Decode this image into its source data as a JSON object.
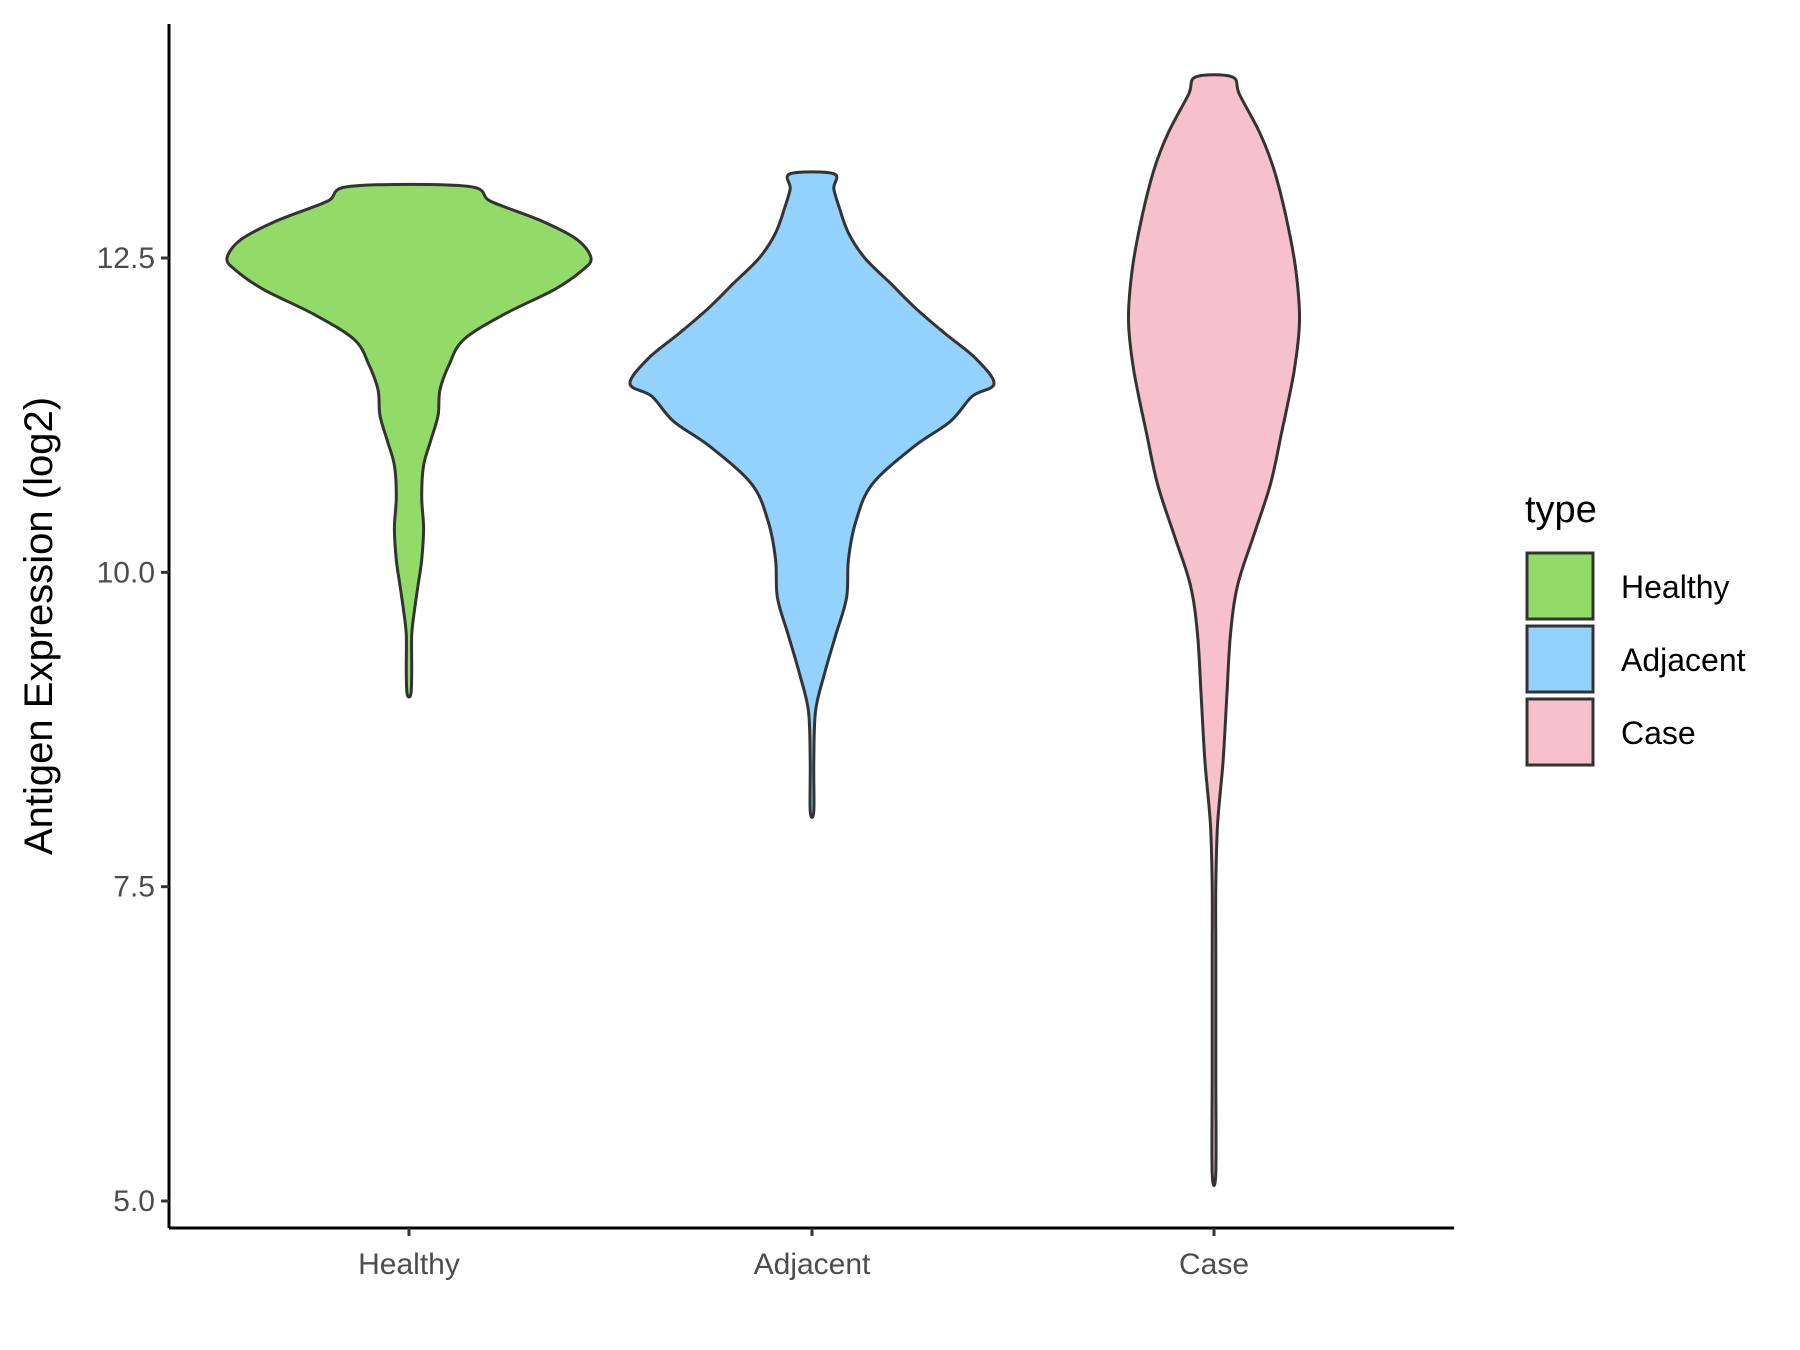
{
  "colors": {
    "healthy": "#93DB69",
    "adjacent": "#93D2FD",
    "case": "#F6C1CC",
    "outline": "#333333",
    "axis": "#000000",
    "tick_text": "#4d4d4d"
  },
  "chart_data": {
    "type": "violin",
    "title": "",
    "xlabel": "",
    "ylabel": "Antigen Expression (log2)",
    "ylim": [
      4.8,
      14.3
    ],
    "y_ticks": [
      5.0,
      7.5,
      10.0,
      12.5
    ],
    "y_tick_labels": [
      "5.0",
      "7.5",
      "10.0",
      "12.5"
    ],
    "categories": [
      "Healthy",
      "Adjacent",
      "Case"
    ],
    "grid": false,
    "legend": {
      "title": "type",
      "placement": "right",
      "entries": [
        "Healthy",
        "Adjacent",
        "Case"
      ]
    },
    "series": [
      {
        "name": "Healthy",
        "color": "#93DB69",
        "y_min": 9.03,
        "y_max": 13.07,
        "density": [
          [
            9.03,
            0.01
          ],
          [
            9.2,
            0.015
          ],
          [
            9.5,
            0.015
          ],
          [
            9.7,
            0.03
          ],
          [
            9.9,
            0.05
          ],
          [
            10.1,
            0.07
          ],
          [
            10.35,
            0.08
          ],
          [
            10.6,
            0.07
          ],
          [
            10.85,
            0.08
          ],
          [
            11.05,
            0.12
          ],
          [
            11.25,
            0.16
          ],
          [
            11.45,
            0.17
          ],
          [
            11.65,
            0.22
          ],
          [
            11.85,
            0.3
          ],
          [
            12.05,
            0.52
          ],
          [
            12.25,
            0.8
          ],
          [
            12.4,
            0.95
          ],
          [
            12.5,
            1.0
          ],
          [
            12.65,
            0.92
          ],
          [
            12.8,
            0.72
          ],
          [
            12.95,
            0.45
          ],
          [
            13.07,
            0.32
          ]
        ]
      },
      {
        "name": "Adjacent",
        "color": "#93D2FD",
        "y_min": 8.1,
        "y_max": 13.17,
        "density": [
          [
            8.1,
            0.01
          ],
          [
            8.5,
            0.01
          ],
          [
            8.9,
            0.02
          ],
          [
            9.2,
            0.07
          ],
          [
            9.5,
            0.13
          ],
          [
            9.8,
            0.19
          ],
          [
            10.1,
            0.2
          ],
          [
            10.4,
            0.24
          ],
          [
            10.7,
            0.33
          ],
          [
            11.0,
            0.56
          ],
          [
            11.2,
            0.76
          ],
          [
            11.4,
            0.88
          ],
          [
            11.5,
            1.0
          ],
          [
            11.7,
            0.9
          ],
          [
            11.9,
            0.73
          ],
          [
            12.1,
            0.57
          ],
          [
            12.3,
            0.43
          ],
          [
            12.5,
            0.29
          ],
          [
            12.7,
            0.2
          ],
          [
            12.9,
            0.15
          ],
          [
            13.05,
            0.12
          ],
          [
            13.17,
            0.12
          ]
        ]
      },
      {
        "name": "Case",
        "color": "#F6C1CC",
        "y_min": 5.22,
        "y_max": 13.94,
        "density": [
          [
            5.22,
            0.01
          ],
          [
            6.0,
            0.01
          ],
          [
            6.5,
            0.01
          ],
          [
            7.0,
            0.01
          ],
          [
            7.5,
            0.01
          ],
          [
            8.0,
            0.02
          ],
          [
            8.5,
            0.05
          ],
          [
            9.0,
            0.07
          ],
          [
            9.5,
            0.09
          ],
          [
            9.9,
            0.13
          ],
          [
            10.3,
            0.22
          ],
          [
            10.7,
            0.31
          ],
          [
            11.1,
            0.37
          ],
          [
            11.6,
            0.44
          ],
          [
            12.0,
            0.47
          ],
          [
            12.4,
            0.45
          ],
          [
            12.8,
            0.4
          ],
          [
            13.2,
            0.33
          ],
          [
            13.5,
            0.25
          ],
          [
            13.8,
            0.14
          ],
          [
            13.94,
            0.1
          ]
        ]
      }
    ]
  }
}
